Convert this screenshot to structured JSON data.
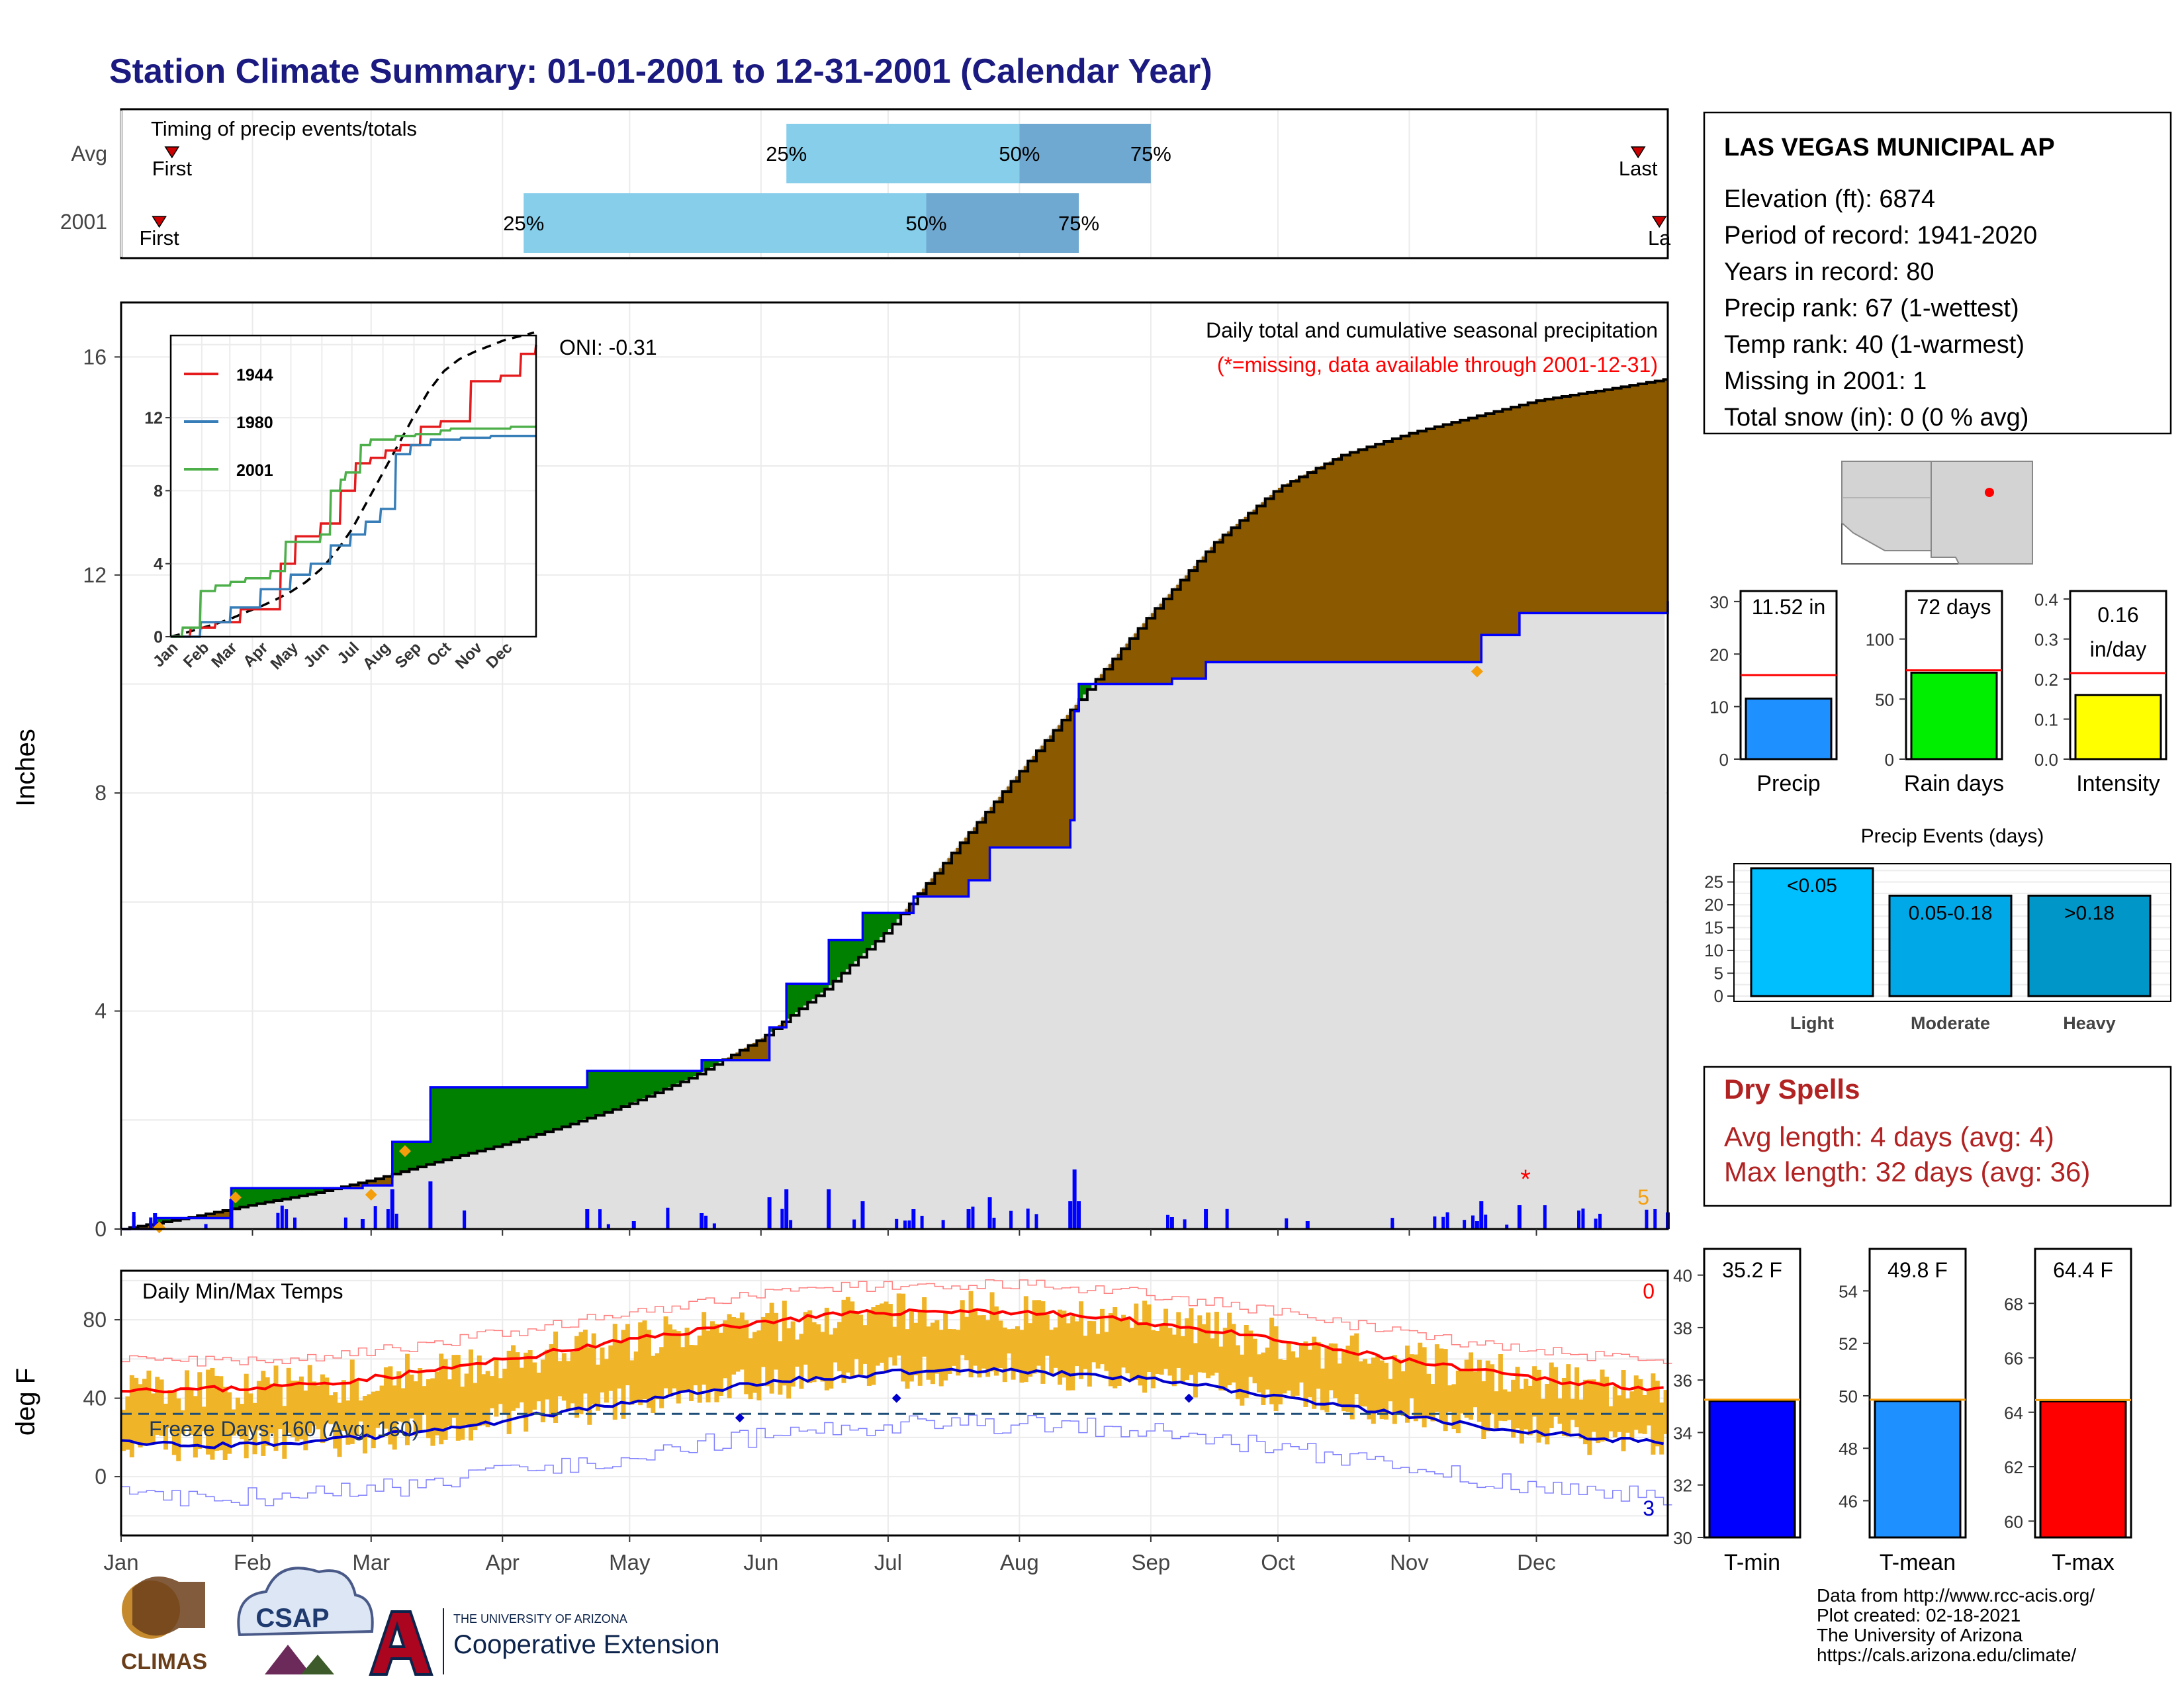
{
  "title": "Station Climate Summary: 01-01-2001 to 12-31-2001 (Calendar Year)",
  "station": {
    "name": "LAS VEGAS MUNICIPAL AP",
    "lines": [
      "Elevation (ft): 6874",
      "Period of record: 1941-2020",
      "Years in record: 80",
      "Precip rank: 67 (1-wettest)",
      "Temp rank: 40 (1-warmest)",
      "Missing in 2001: 1",
      "Total snow (in): 0 (0 % avg)"
    ]
  },
  "timing": {
    "title": "Timing of precip events/totals",
    "rows": [
      {
        "label": "Avg",
        "first": "First",
        "last": "Last",
        "q25_label": "25%",
        "q50_label": "50%",
        "q75_label": "75%",
        "first_day": 12,
        "q25_day": 157,
        "q50_day": 212,
        "q75_day": 243,
        "last_day": 358
      },
      {
        "label": "2001",
        "first": "First",
        "last": "La",
        "q25_label": "25%",
        "q50_label": "50%",
        "q75_label": "75%",
        "first_day": 9,
        "q25_day": 95,
        "q50_day": 190,
        "q75_day": 226,
        "last_day": 363
      }
    ]
  },
  "months": [
    "Jan",
    "Feb",
    "Mar",
    "Apr",
    "May",
    "Jun",
    "Jul",
    "Aug",
    "Sep",
    "Oct",
    "Nov",
    "Dec"
  ],
  "precip": {
    "ylabel": "Inches",
    "y_ticks": [
      "0",
      "4",
      "8",
      "12",
      "16"
    ],
    "subtitle": "Daily total and cumulative seasonal precipitation",
    "missing_note": "(*=missing, data available through 2001-12-31)",
    "oni": "ONI: -0.31",
    "corner_count": "5",
    "missing_marker": "*",
    "ylim": [
      0,
      17
    ],
    "avg_cumulative": {
      "days": [
        0,
        15,
        31,
        45,
        59,
        75,
        90,
        105,
        120,
        135,
        151,
        166,
        181,
        196,
        212,
        228,
        243,
        258,
        273,
        288,
        304,
        319,
        334,
        350,
        365
      ],
      "values": [
        0,
        0.2,
        0.45,
        0.65,
        0.9,
        1.25,
        1.55,
        1.9,
        2.3,
        2.8,
        3.5,
        4.4,
        5.5,
        6.9,
        8.4,
        9.9,
        11.3,
        12.6,
        13.6,
        14.2,
        14.6,
        14.9,
        15.2,
        15.4,
        15.6
      ]
    },
    "cumulative_2001": {
      "days": [
        0,
        8,
        26,
        57,
        64,
        73,
        110,
        121,
        137,
        153,
        157,
        167,
        175,
        187,
        200,
        205,
        224,
        225,
        226,
        248,
        256,
        280,
        320,
        321,
        330,
        365
      ],
      "values": [
        0,
        0.2,
        0.75,
        0.8,
        1.6,
        2.6,
        2.9,
        2.9,
        3.1,
        3.7,
        4.5,
        5.3,
        5.8,
        6.1,
        6.4,
        7.0,
        7.5,
        9.5,
        10.0,
        10.1,
        10.4,
        10.4,
        10.4,
        10.9,
        11.3,
        11.52
      ]
    }
  },
  "inset": {
    "y_ticks": [
      "0",
      "4",
      "8",
      "12"
    ],
    "month_labels": [
      "Jan",
      "Feb",
      "Mar",
      "Apr",
      "May",
      "Jun",
      "Jul",
      "Aug",
      "Sep",
      "Oct",
      "Nov",
      "Dec"
    ],
    "legend": [
      {
        "label": "1944",
        "color": "#e41a1c"
      },
      {
        "label": "1980",
        "color": "#377eb8"
      },
      {
        "label": "2001",
        "color": "#4daf4a"
      }
    ]
  },
  "summary_bars": {
    "precip": {
      "label": "Precip",
      "value_text": "11.52 in",
      "value": 11.52,
      "avg": 16.0,
      "max": 32,
      "ticks": [
        "0",
        "10",
        "20",
        "30"
      ],
      "color": "#1e90ff"
    },
    "rain_days": {
      "label": "Rain days",
      "value_text": "72 days",
      "value": 72,
      "avg": 74,
      "max": 140,
      "ticks": [
        "0",
        "50",
        "100"
      ],
      "color": "#00ee00"
    },
    "intensity": {
      "label": "Intensity",
      "value_text": "0.16",
      "value_text2": "in/day",
      "value": 0.16,
      "avg": 0.215,
      "max": 0.42,
      "ticks": [
        "0.0",
        "0.1",
        "0.2",
        "0.3",
        "0.4"
      ],
      "color": "#ffff00"
    }
  },
  "precip_events": {
    "title": "Precip Events (days)",
    "ticks": [
      "0",
      "5",
      "10",
      "15",
      "20",
      "25"
    ],
    "bars": [
      {
        "category": "Light",
        "label": "<0.05",
        "value": 28,
        "color": "#00bfff"
      },
      {
        "category": "Moderate",
        "label": "0.05-0.18",
        "value": 22,
        "color": "#00a8e8"
      },
      {
        "category": "Heavy",
        "label": ">0.18",
        "value": 22,
        "color": "#0096c7"
      }
    ]
  },
  "dry_spells": {
    "title": "Dry Spells",
    "avg_line": "Avg length: 4 days (avg: 4)",
    "max_line": "Max length: 32 days (avg: 36)"
  },
  "temps": {
    "ylabel": "deg F",
    "title": "Daily Min/Max Temps",
    "y_ticks": [
      "0",
      "40",
      "80"
    ],
    "freeze_text": "Freeze Days: 160 (Avg: 160)",
    "count_max": "0",
    "count_min": "3",
    "ylim": [
      -30,
      105
    ]
  },
  "temp_bars": {
    "tmin": {
      "label": "T-min",
      "value_text": "35.2 F",
      "value": 35.2,
      "min": 30,
      "max": 41,
      "ticks": [
        "30",
        "32",
        "34",
        "36",
        "38",
        "40"
      ],
      "color": "#0000ff"
    },
    "tmean": {
      "label": "T-mean",
      "value_text": "49.8 F",
      "value": 49.8,
      "min": 44.6,
      "max": 55.6,
      "ticks": [
        "46",
        "48",
        "50",
        "52",
        "54"
      ],
      "color": "#1e90ff"
    },
    "tmax": {
      "label": "T-max",
      "value_text": "64.4 F",
      "value": 64.4,
      "min": 59.4,
      "max": 70.0,
      "ticks": [
        "60",
        "62",
        "64",
        "66",
        "68"
      ],
      "color": "#ff0000"
    }
  },
  "footer": {
    "lines": [
      "Data from http://www.rcc-acis.org/",
      "Plot created: 02-18-2021",
      "The University of Arizona",
      "https://cals.arizona.edu/climate/"
    ],
    "climas": "CLIMAS",
    "csap": "CSAP",
    "ua_small": "THE UNIVERSITY OF ARIZONA",
    "ua_big": "Cooperative Extension"
  }
}
